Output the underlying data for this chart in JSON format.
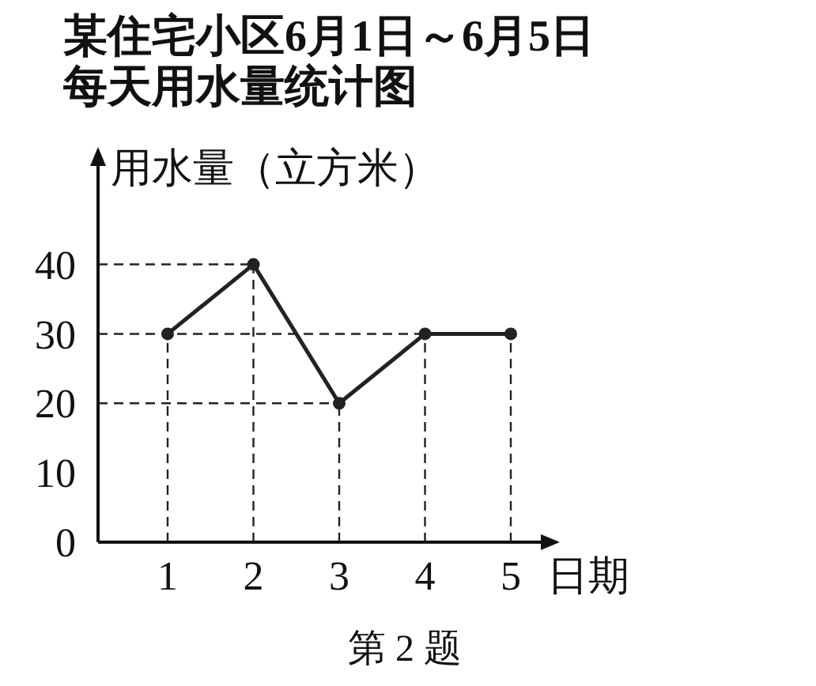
{
  "chart_data": {
    "type": "line",
    "title": "某住宅小区6月1日～6月5日每天用水量统计图",
    "ylabel": "用水量（立方米）",
    "xlabel": "日期",
    "annotations": [
      "第 2 题"
    ],
    "categories": [
      "1",
      "2",
      "3",
      "4",
      "5"
    ],
    "series": [
      {
        "color": "#222222",
        "values": [
          30,
          40,
          20,
          30,
          30
        ]
      }
    ],
    "ylim": [
      0,
      56
    ],
    "yticks": [
      0,
      10,
      20,
      30,
      40
    ],
    "marker": "circle",
    "line_style": "solid",
    "ref_lines": [
      {
        "axis": "y",
        "value": 40,
        "line_style": "dashed"
      },
      {
        "axis": "y",
        "value": 30,
        "line_style": "dashed"
      },
      {
        "axis": "y",
        "value": 20,
        "line_style": "dashed"
      },
      {
        "axis": "x",
        "value": "1",
        "line_style": "dashed"
      },
      {
        "axis": "x",
        "value": "2",
        "line_style": "dashed"
      },
      {
        "axis": "x",
        "value": "3",
        "line_style": "dashed"
      },
      {
        "axis": "x",
        "value": "4",
        "line_style": "dashed"
      },
      {
        "axis": "x",
        "value": "5",
        "line_style": "dashed"
      }
    ]
  }
}
